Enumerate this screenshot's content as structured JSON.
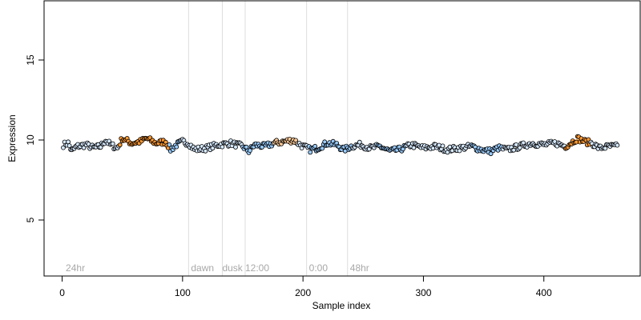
{
  "chart_data": {
    "type": "scatter",
    "title": "",
    "xlabel": "Sample index",
    "ylabel": "Expression",
    "xlim": [
      -15,
      480
    ],
    "ylim": [
      1.5,
      18.7
    ],
    "x_ticks": [
      0,
      100,
      200,
      300,
      400
    ],
    "y_ticks": [
      5,
      10,
      15
    ],
    "grid": false,
    "legend": "none",
    "vlines": [
      105,
      133,
      152,
      203,
      237
    ],
    "annotations": [
      {
        "text": "24hr",
        "x": 3,
        "y": 2
      },
      {
        "text": "dawn",
        "x": 107,
        "y": 2
      },
      {
        "text": "dusk",
        "x": 133,
        "y": 2
      },
      {
        "text": "12:00",
        "x": 152,
        "y": 2
      },
      {
        "text": "0:00",
        "x": 205,
        "y": 2
      },
      {
        "text": "48hr",
        "x": 239,
        "y": 2
      }
    ],
    "n_points": 461,
    "y_anchors": [
      [
        1,
        9.7
      ],
      [
        5,
        9.8
      ],
      [
        8,
        9.3
      ],
      [
        12,
        9.6
      ],
      [
        20,
        9.7
      ],
      [
        26,
        9.5
      ],
      [
        32,
        9.6
      ],
      [
        36,
        10.0
      ],
      [
        40,
        9.7
      ],
      [
        46,
        9.5
      ],
      [
        50,
        10.1
      ],
      [
        58,
        9.8
      ],
      [
        65,
        9.9
      ],
      [
        70,
        10.1
      ],
      [
        78,
        9.8
      ],
      [
        86,
        9.9
      ],
      [
        90,
        9.4
      ],
      [
        95,
        9.7
      ],
      [
        100,
        9.9
      ],
      [
        105,
        9.8
      ],
      [
        110,
        9.4
      ],
      [
        120,
        9.5
      ],
      [
        130,
        9.7
      ],
      [
        140,
        9.8
      ],
      [
        150,
        9.6
      ],
      [
        155,
        9.3
      ],
      [
        160,
        9.7
      ],
      [
        168,
        9.6
      ],
      [
        176,
        9.8
      ],
      [
        184,
        9.9
      ],
      [
        192,
        10.0
      ],
      [
        200,
        9.6
      ],
      [
        206,
        9.4
      ],
      [
        212,
        9.5
      ],
      [
        220,
        9.8
      ],
      [
        228,
        9.7
      ],
      [
        234,
        9.4
      ],
      [
        240,
        9.6
      ],
      [
        248,
        9.7
      ],
      [
        256,
        9.5
      ],
      [
        264,
        9.6
      ],
      [
        272,
        9.3
      ],
      [
        280,
        9.4
      ],
      [
        290,
        9.7
      ],
      [
        300,
        9.5
      ],
      [
        310,
        9.6
      ],
      [
        320,
        9.4
      ],
      [
        330,
        9.5
      ],
      [
        340,
        9.6
      ],
      [
        348,
        9.4
      ],
      [
        356,
        9.3
      ],
      [
        362,
        9.5
      ],
      [
        370,
        9.4
      ],
      [
        380,
        9.6
      ],
      [
        390,
        9.8
      ],
      [
        400,
        9.7
      ],
      [
        410,
        9.8
      ],
      [
        418,
        9.6
      ],
      [
        424,
        9.9
      ],
      [
        428,
        10.1
      ],
      [
        434,
        9.9
      ],
      [
        440,
        9.8
      ],
      [
        446,
        9.5
      ],
      [
        454,
        9.6
      ],
      [
        461,
        9.6
      ]
    ],
    "highlight_segments": [
      {
        "from": 48,
        "to": 88,
        "color": "#ff9933",
        "line": "#ff9933"
      },
      {
        "from": 89,
        "to": 98,
        "color": "#99ccff",
        "line": "#6c9fd3"
      },
      {
        "from": 150,
        "to": 175,
        "color": "#99ccff",
        "line": "#6c9fd3"
      },
      {
        "from": 176,
        "to": 195,
        "color": "#ffcc99",
        "line": "#ff9933"
      },
      {
        "from": 205,
        "to": 240,
        "color": "#99ccff",
        "line": "#6c9fd3"
      },
      {
        "from": 262,
        "to": 285,
        "color": "#99ccff",
        "line": "#6c9fd3"
      },
      {
        "from": 340,
        "to": 365,
        "color": "#99ccff",
        "line": "#6c9fd3"
      },
      {
        "from": 418,
        "to": 438,
        "color": "#ff9933",
        "line": "#ff9933"
      }
    ],
    "point_fill": "#d6e9ff",
    "point_stroke": "#000000",
    "vline_color": "#dddddd"
  }
}
